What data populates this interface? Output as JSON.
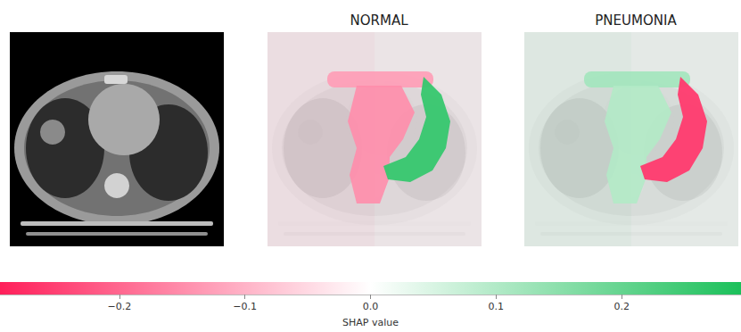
{
  "chart_data": {
    "type": "image_explanation",
    "explanations": [
      {
        "title": "NORMAL",
        "segment_values": [
          -0.04,
          -0.02,
          -0.13,
          -0.15,
          0.26
        ]
      },
      {
        "title": "PNEUMONIA",
        "segment_values": [
          0.04,
          0.02,
          0.12,
          0.1,
          -0.26
        ]
      }
    ],
    "colorbar": {
      "label": "SHAP value",
      "xlim": [
        -0.295,
        0.295
      ],
      "xticks": [
        {
          "value": -0.2,
          "label": "−0.2"
        },
        {
          "value": -0.1,
          "label": "−0.1"
        },
        {
          "value": 0,
          "label": "0.0"
        },
        0.1,
        0.2
      ],
      "colors": [
        "#ff1f5a",
        "#ffffff",
        "#1bc05a"
      ]
    }
  }
}
